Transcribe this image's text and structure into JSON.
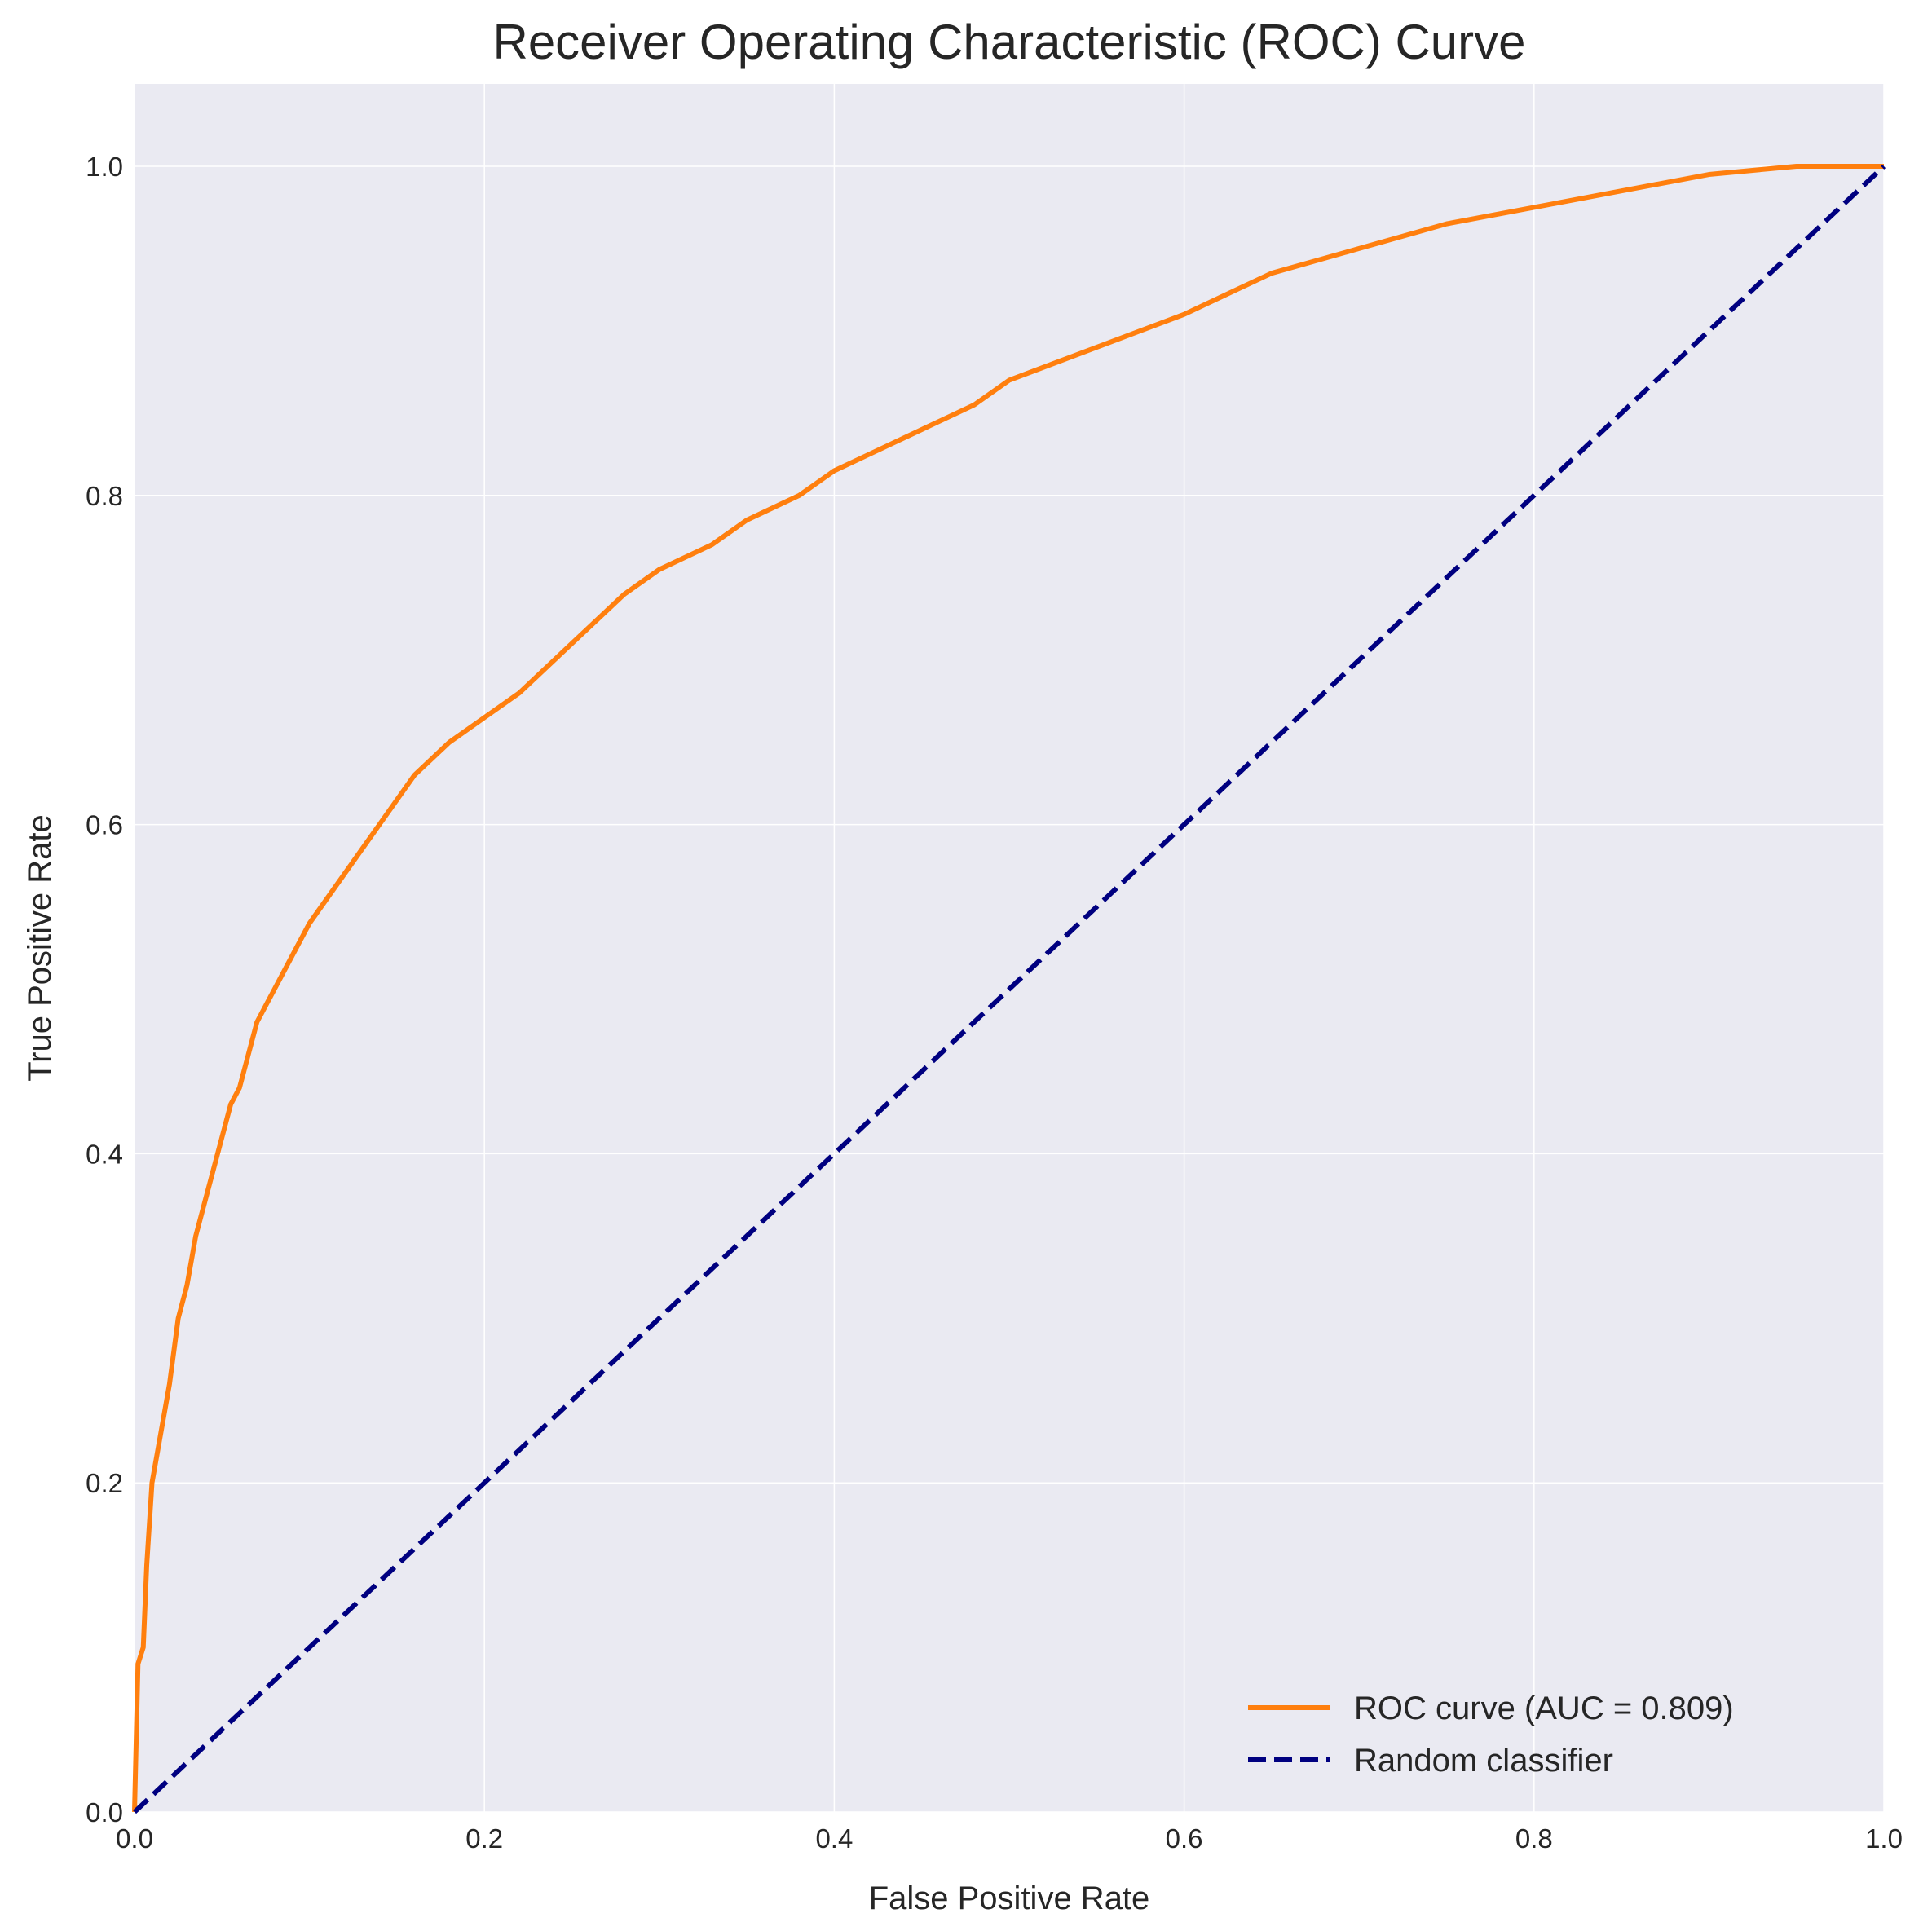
{
  "chart_data": {
    "type": "line",
    "title": "Receiver Operating Characteristic (ROC) Curve",
    "x_label": "False Positive Rate",
    "y_label": "True Positive Rate",
    "xlim": [
      0,
      1.0
    ],
    "ylim": [
      0,
      1.05
    ],
    "xticks": [
      {
        "value": 0,
        "label": "0.0"
      },
      0.2,
      0.4,
      0.6,
      0.8,
      {
        "value": 1,
        "label": "1.0"
      }
    ],
    "yticks": [
      {
        "value": 0,
        "label": "0.0"
      },
      0.2,
      0.4,
      0.6,
      0.8,
      {
        "value": 1,
        "label": "1.0"
      }
    ],
    "grid": true,
    "legend": "lower right",
    "series": [
      {
        "name": "ROC curve (AUC = 0.809)",
        "color": "#ff7f0e",
        "linestyle": "solid",
        "x": [
          0,
          0.002,
          0.005,
          0.007,
          0.01,
          0.015,
          0.02,
          0.025,
          0.03,
          0.035,
          0.04,
          0.045,
          0.05,
          0.055,
          0.06,
          0.065,
          0.07,
          0.08,
          0.09,
          0.1,
          0.12,
          0.14,
          0.16,
          0.18,
          0.2,
          0.22,
          0.25,
          0.28,
          0.3,
          0.33,
          0.35,
          0.38,
          0.4,
          0.42,
          0.45,
          0.48,
          0.5,
          0.55,
          0.6,
          0.65,
          0.7,
          0.75,
          0.8,
          0.85,
          0.9,
          0.95,
          1
        ],
        "values": [
          0,
          0.09,
          0.1,
          0.15,
          0.2,
          0.23,
          0.26,
          0.3,
          0.32,
          0.35,
          0.37,
          0.39,
          0.41,
          0.43,
          0.44,
          0.46,
          0.48,
          0.5,
          0.52,
          0.54,
          0.57,
          0.6,
          0.63,
          0.65,
          0.665,
          0.68,
          0.71,
          0.74,
          0.755,
          0.77,
          0.785,
          0.8,
          0.815,
          0.825,
          0.84,
          0.855,
          0.87,
          0.89,
          0.91,
          0.935,
          0.95,
          0.965,
          0.975,
          0.985,
          0.995,
          1.0,
          1.0
        ]
      },
      {
        "name": "Random classifier",
        "color": "#000080",
        "linestyle": "dashed",
        "x": [
          0,
          1
        ],
        "values": [
          0,
          1
        ]
      }
    ]
  }
}
